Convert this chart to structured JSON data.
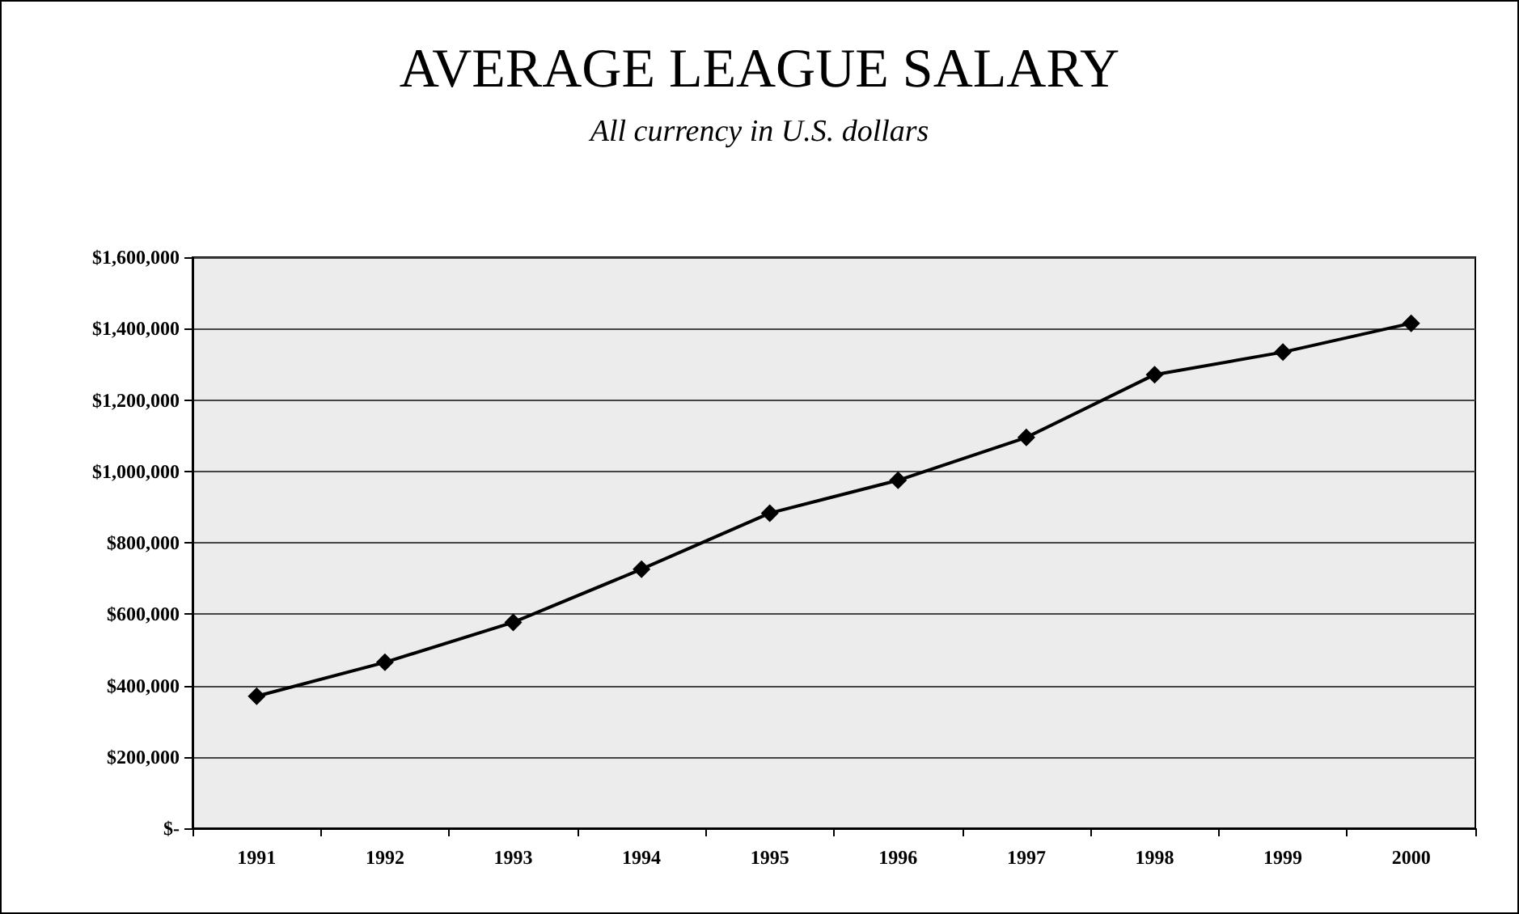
{
  "chart_data": {
    "type": "line",
    "title": "AVERAGE LEAGUE SALARY",
    "subtitle": "All currency in U.S. dollars",
    "categories": [
      "1991",
      "1992",
      "1993",
      "1994",
      "1995",
      "1996",
      "1997",
      "1998",
      "1999",
      "2000"
    ],
    "series": [
      {
        "color": "#000000",
        "values": [
          370000,
          465000,
          577000,
          726000,
          883000,
          975000,
          1095000,
          1271000,
          1334000,
          1415000
        ]
      }
    ],
    "ylim": [
      0,
      1600000
    ],
    "yticks": [
      {
        "value": 0,
        "label": "$-"
      },
      {
        "value": 200000,
        "label": "$200,000"
      },
      {
        "value": 400000,
        "label": "$400,000"
      },
      {
        "value": 600000,
        "label": "$600,000"
      },
      {
        "value": 800000,
        "label": "$800,000"
      },
      {
        "value": 1000000,
        "label": "$1,000,000"
      },
      {
        "value": 1200000,
        "label": "$1,200,000"
      },
      {
        "value": 1400000,
        "label": "$1,400,000"
      },
      {
        "value": 1600000,
        "label": "$1,600,000"
      }
    ],
    "grid": "y",
    "marker": "diamond",
    "line_style": "solid"
  }
}
